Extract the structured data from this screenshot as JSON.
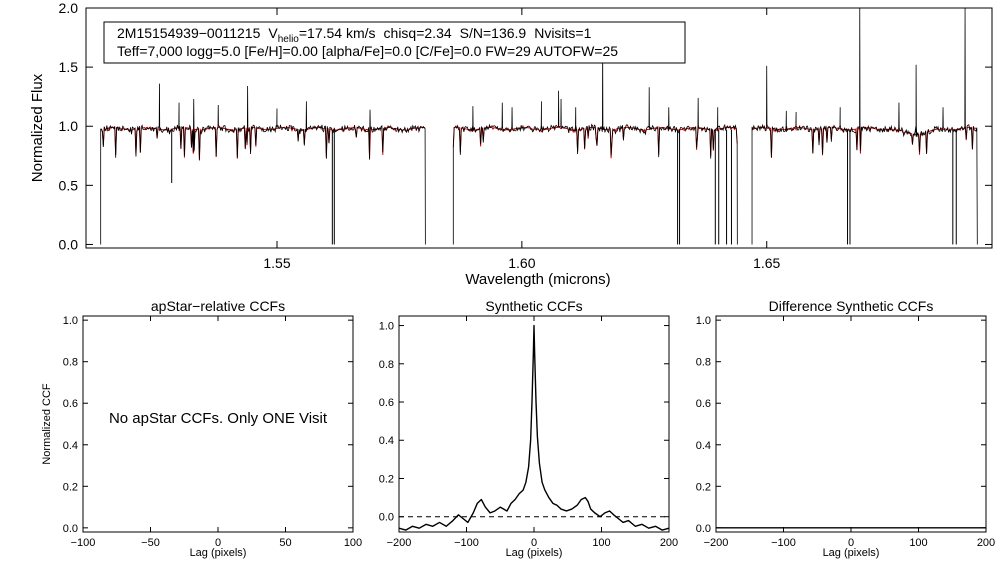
{
  "chart_data": [
    {
      "id": "spectrum",
      "type": "line",
      "xlabel": "Wavelength (microns)",
      "ylabel": "Normalized Flux",
      "xlim": [
        1.511,
        1.696
      ],
      "ylim": [
        -0.03,
        2.0
      ],
      "xticks": [
        {
          "value": 1.55,
          "label": "1.55"
        },
        {
          "value": 1.6,
          "label": "1.60"
        },
        {
          "value": 1.65,
          "label": "1.65"
        }
      ],
      "yticks": [
        {
          "value": 0.0,
          "label": "0.0"
        },
        {
          "value": 0.5,
          "label": "0.5"
        },
        {
          "value": 1.0,
          "label": "1.0"
        },
        {
          "value": 1.5,
          "label": "1.5"
        },
        {
          "value": 2.0,
          "label": "2.0"
        }
      ],
      "info_box": {
        "line1": {
          "id": "2M15154939−0011215",
          "v_prefix": "V",
          "v_sub": "helio",
          "v_rest": "=17.54 km/s",
          "chisq": "chisq=2.34",
          "sn": "S/N=136.9",
          "nvisits": "Nvisits=1"
        },
        "line2": "Teff=7,000 logg=5.0 [Fe/H]=0.00 [alpha/Fe]=0.0 [C/Fe]=0.0 FW=29 AUTOFW=25"
      },
      "chips": [
        [
          1.514,
          1.5803
        ],
        [
          1.586,
          1.644
        ],
        [
          1.647,
          1.693
        ]
      ],
      "series": [
        {
          "role": "observed",
          "color": "#000000"
        },
        {
          "role": "model",
          "color": "#cc0000"
        }
      ],
      "emission_spikes": [
        [
          1.526,
          1.36
        ],
        [
          1.53,
          1.2
        ],
        [
          1.533,
          1.23
        ],
        [
          1.538,
          1.18
        ],
        [
          1.544,
          1.34
        ],
        [
          1.55,
          1.15
        ],
        [
          1.556,
          1.21
        ],
        [
          1.569,
          1.14
        ],
        [
          1.59,
          1.17
        ],
        [
          1.596,
          1.2
        ],
        [
          1.598,
          1.16
        ],
        [
          1.604,
          1.21
        ],
        [
          1.6075,
          1.3
        ],
        [
          1.608,
          1.23
        ],
        [
          1.611,
          1.16
        ],
        [
          1.6165,
          1.69
        ],
        [
          1.626,
          1.33
        ],
        [
          1.63,
          1.16
        ],
        [
          1.636,
          1.24
        ],
        [
          1.64,
          1.16
        ],
        [
          1.65,
          1.51
        ],
        [
          1.654,
          1.13
        ],
        [
          1.656,
          1.12
        ],
        [
          1.665,
          1.16
        ],
        [
          1.669,
          2.0
        ],
        [
          1.677,
          1.2
        ],
        [
          1.6805,
          1.52
        ],
        [
          1.686,
          1.16
        ],
        [
          1.6905,
          2.0
        ]
      ],
      "absorption_spikes": [
        [
          1.5285,
          0.52
        ],
        [
          1.5613,
          0.0
        ],
        [
          1.5617,
          0.0
        ],
        [
          1.6318,
          0.0
        ],
        [
          1.6322,
          0.0
        ],
        [
          1.6395,
          0.0
        ],
        [
          1.6402,
          0.0
        ],
        [
          1.6418,
          0.0
        ],
        [
          1.6428,
          0.0
        ],
        [
          1.6665,
          0.0
        ],
        [
          1.667,
          0.0
        ],
        [
          1.688,
          0.0
        ],
        [
          1.6887,
          0.0
        ]
      ]
    },
    {
      "id": "apstar-ccf",
      "type": "line",
      "title": "apStar−relative CCFs",
      "xlabel": "Lag (pixels)",
      "ylabel": "Normalized CCF",
      "xlim": [
        -100,
        100
      ],
      "ylim": [
        -0.02,
        1.02
      ],
      "xticks": [
        {
          "value": -100,
          "label": "−100"
        },
        {
          "value": -50,
          "label": "−50"
        },
        {
          "value": 0,
          "label": "0"
        },
        {
          "value": 50,
          "label": "50"
        },
        {
          "value": 100,
          "label": "100"
        }
      ],
      "yticks": [
        {
          "value": 0.0,
          "label": "0.0"
        },
        {
          "value": 0.2,
          "label": "0.2"
        },
        {
          "value": 0.4,
          "label": "0.4"
        },
        {
          "value": 0.6,
          "label": "0.6"
        },
        {
          "value": 0.8,
          "label": "0.8"
        },
        {
          "value": 1.0,
          "label": "1.0"
        }
      ],
      "note": "No apStar CCFs.  Only ONE Visit",
      "series": []
    },
    {
      "id": "synthetic-ccf",
      "type": "line",
      "title": "Synthetic CCFs",
      "xlabel": "Lag (pixels)",
      "xlim": [
        -200,
        200
      ],
      "ylim": [
        -0.08,
        1.05
      ],
      "xticks": [
        {
          "value": -200,
          "label": "−200"
        },
        {
          "value": -100,
          "label": "−100"
        },
        {
          "value": 0,
          "label": "0"
        },
        {
          "value": 100,
          "label": "100"
        },
        {
          "value": 200,
          "label": "200"
        }
      ],
      "yticks": [
        {
          "value": 0.0,
          "label": "0.0"
        },
        {
          "value": 0.2,
          "label": "0.2"
        },
        {
          "value": 0.4,
          "label": "0.4"
        },
        {
          "value": 0.6,
          "label": "0.6"
        },
        {
          "value": 0.8,
          "label": "0.8"
        },
        {
          "value": 1.0,
          "label": "1.0"
        }
      ],
      "reference_line": {
        "y": 0.0,
        "style": "dashed"
      },
      "series": [
        {
          "color": "#000000",
          "x": [
            -200,
            -190,
            -180,
            -170,
            -160,
            -150,
            -140,
            -130,
            -120,
            -112,
            -105,
            -98,
            -90,
            -84,
            -78,
            -72,
            -65,
            -58,
            -50,
            -40,
            -34,
            -28,
            -22,
            -16,
            -12,
            -8,
            -5,
            -3,
            -1,
            0,
            1,
            3,
            5,
            8,
            12,
            16,
            22,
            28,
            34,
            40,
            48,
            56,
            64,
            70,
            76,
            80,
            84,
            90,
            98,
            105,
            112,
            118,
            125,
            132,
            140,
            150,
            160,
            170,
            180,
            190,
            200
          ],
          "y": [
            -0.06,
            -0.07,
            -0.05,
            -0.06,
            -0.04,
            -0.05,
            -0.03,
            -0.05,
            -0.02,
            0.01,
            -0.01,
            -0.03,
            0.02,
            0.07,
            0.09,
            0.05,
            0.02,
            0.03,
            0.05,
            0.03,
            0.07,
            0.09,
            0.12,
            0.14,
            0.18,
            0.26,
            0.4,
            0.6,
            0.85,
            1.0,
            0.85,
            0.6,
            0.42,
            0.28,
            0.18,
            0.14,
            0.1,
            0.07,
            0.06,
            0.04,
            0.03,
            0.04,
            0.06,
            0.09,
            0.1,
            0.08,
            0.04,
            0.02,
            0.0,
            0.02,
            0.03,
            0.01,
            -0.01,
            -0.03,
            -0.02,
            -0.05,
            -0.04,
            -0.06,
            -0.05,
            -0.07,
            -0.06
          ]
        }
      ]
    },
    {
      "id": "difference-ccf",
      "type": "line",
      "title": "Difference Synthetic CCFs",
      "xlabel": "Lag (pixels)",
      "xlim": [
        -200,
        200
      ],
      "ylim": [
        -0.02,
        1.02
      ],
      "xticks": [
        {
          "value": -200,
          "label": "−200"
        },
        {
          "value": -100,
          "label": "−100"
        },
        {
          "value": 0,
          "label": "0"
        },
        {
          "value": 100,
          "label": "100"
        },
        {
          "value": 200,
          "label": "200"
        }
      ],
      "yticks": [
        {
          "value": 0.0,
          "label": "0.0"
        },
        {
          "value": 0.2,
          "label": "0.2"
        },
        {
          "value": 0.4,
          "label": "0.4"
        },
        {
          "value": 0.6,
          "label": "0.6"
        },
        {
          "value": 0.8,
          "label": "0.8"
        },
        {
          "value": 1.0,
          "label": "1.0"
        }
      ],
      "series": [
        {
          "color": "#000000",
          "x": [
            -200,
            200
          ],
          "y": [
            0.0,
            0.0
          ]
        }
      ]
    }
  ]
}
